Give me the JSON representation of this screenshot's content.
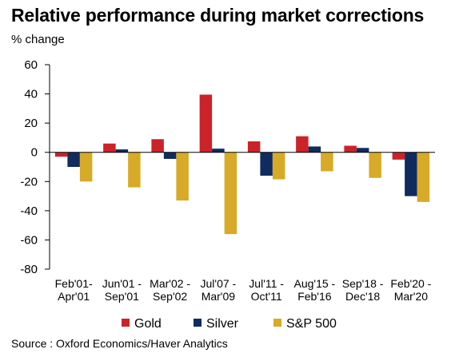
{
  "header": {
    "title": "Relative performance during market corrections",
    "unit_label": "% change"
  },
  "footer": {
    "source": "Source : Oxford Economics/Haver Analytics"
  },
  "colors": {
    "gold": "#cc2229",
    "silver": "#102b5e",
    "sp500": "#d7aa27",
    "axis": "#000000"
  },
  "chart_data": {
    "type": "bar",
    "title": "Relative performance during market corrections",
    "ylabel": "% change",
    "xlabel": "",
    "ylim": [
      -80,
      60
    ],
    "yticks": [
      60,
      40,
      20,
      0,
      -20,
      -40,
      -60,
      -80
    ],
    "grid": false,
    "legend_position": "bottom",
    "categories": [
      [
        "Feb'01-",
        "Apr'01"
      ],
      [
        "Jun'01 -",
        "Sep'01"
      ],
      [
        "Mar'02 -",
        "Sep'02"
      ],
      [
        "Jul'07 -",
        "Mar'09"
      ],
      [
        "Jul'11 -",
        "Oct'11"
      ],
      [
        "Aug'15 -",
        "Feb'16"
      ],
      [
        "Sep'18 -",
        "Dec'18"
      ],
      [
        "Feb'20 -",
        "Mar'20"
      ]
    ],
    "series": [
      {
        "name": "Gold",
        "color_key": "gold",
        "values": [
          -3,
          6,
          9,
          39.5,
          7.5,
          11,
          4.5,
          -5
        ]
      },
      {
        "name": "Silver",
        "color_key": "silver",
        "values": [
          -10,
          2,
          -4.5,
          2.5,
          -16,
          4,
          3,
          -30
        ]
      },
      {
        "name": "S&P 500",
        "color_key": "sp500",
        "values": [
          -20,
          -24,
          -33,
          -56,
          -18.5,
          -13,
          -17.5,
          -34
        ]
      }
    ]
  }
}
